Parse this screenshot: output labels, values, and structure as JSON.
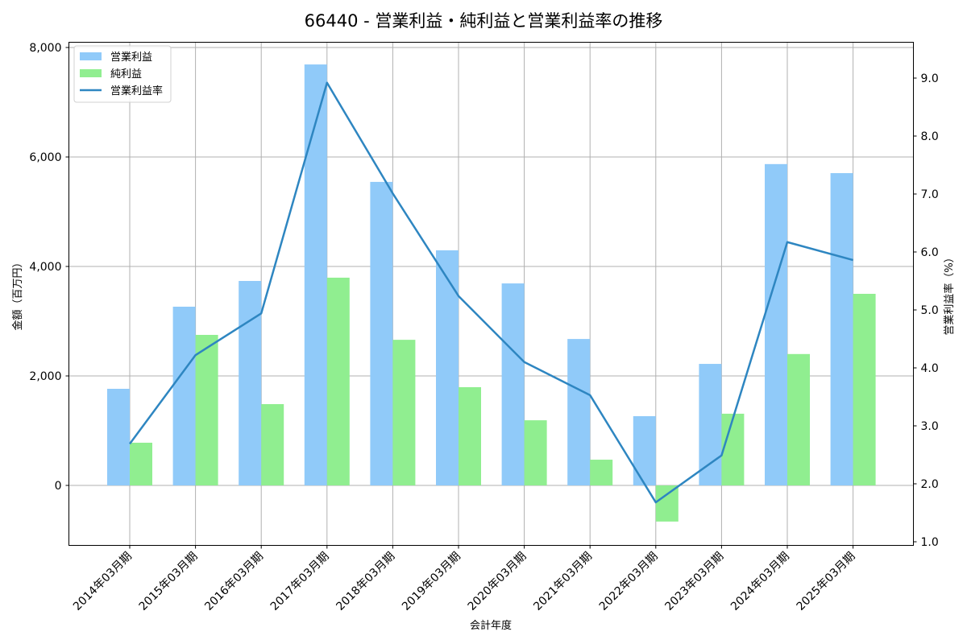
{
  "title": "66440 - 営業利益・純利益と営業利益率の推移",
  "colors": {
    "operating_profit": "#90caf9",
    "net_profit": "#90ee90",
    "operating_margin": "#2e86c1",
    "grid": "#b0b0b0"
  },
  "legend": {
    "items": [
      {
        "label": "営業利益",
        "type": "bar",
        "color": "#90caf9"
      },
      {
        "label": "純利益",
        "type": "bar",
        "color": "#90ee90"
      },
      {
        "label": "営業利益率",
        "type": "line",
        "color": "#2e86c1"
      }
    ]
  },
  "chart_data": {
    "type": "bar",
    "title": "66440 - 営業利益・純利益と営業利益率の推移",
    "xlabel": "会計年度",
    "ylabel": "金額（百万円）",
    "y2label": "営業利益率（%）",
    "ylim": [
      -1090,
      8100
    ],
    "y2lim": [
      1.0,
      9.64
    ],
    "yticks": [
      0,
      2000,
      4000,
      6000,
      8000
    ],
    "ytick_labels": [
      "0",
      "2,000",
      "4,000",
      "6,000",
      "8,000"
    ],
    "y2ticks": [
      1.0,
      2.0,
      3.0,
      4.0,
      5.0,
      6.0,
      7.0,
      8.0,
      9.0
    ],
    "y2tick_labels": [
      "1.0",
      "2.0",
      "3.0",
      "4.0",
      "5.0",
      "6.0",
      "7.0",
      "8.0",
      "9.0"
    ],
    "grid": true,
    "legend_position": "upper left",
    "categories": [
      "2014年03月期",
      "2015年03月期",
      "2016年03月期",
      "2017年03月期",
      "2018年03月期",
      "2019年03月期",
      "2020年03月期",
      "2021年03月期",
      "2022年03月期",
      "2023年03月期",
      "2024年03月期",
      "2025年03月期"
    ],
    "series": [
      {
        "name": "営業利益",
        "type": "bar",
        "axis": "left",
        "values": [
          1765,
          3265,
          3735,
          7690,
          5545,
          4295,
          3690,
          2675,
          1265,
          2220,
          5870,
          5705
        ]
      },
      {
        "name": "純利益",
        "type": "bar",
        "axis": "left",
        "values": [
          780,
          2750,
          1485,
          3795,
          2660,
          1795,
          1190,
          470,
          -660,
          1310,
          2400,
          3500
        ]
      },
      {
        "name": "営業利益率",
        "type": "line",
        "axis": "right",
        "values": [
          2.69,
          4.22,
          4.94,
          8.92,
          7.01,
          5.24,
          4.1,
          3.53,
          1.68,
          2.49,
          6.17,
          5.86
        ]
      }
    ]
  }
}
